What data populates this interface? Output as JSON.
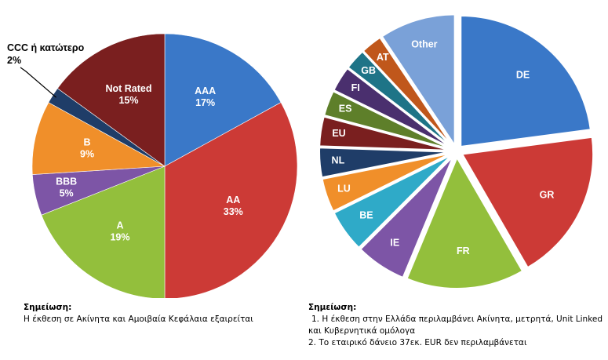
{
  "chart_data": [
    {
      "type": "pie",
      "title": "",
      "unit": "%",
      "slices": [
        {
          "label": "AAA",
          "value": 17,
          "color": "#3A78C8"
        },
        {
          "label": "AA",
          "value": 33,
          "color": "#CC3A36"
        },
        {
          "label": "A",
          "value": 19,
          "color": "#93BF3C"
        },
        {
          "label": "BBB",
          "value": 5,
          "color": "#7D55A6"
        },
        {
          "label": "B",
          "value": 9,
          "color": "#F08F2A"
        },
        {
          "label": "CCC ή κατώτερο",
          "value": 2,
          "color": "#1F3D68"
        },
        {
          "label": "Not Rated",
          "value": 15,
          "color": "#7A1F1F"
        }
      ]
    },
    {
      "type": "pie",
      "title": "",
      "exploded": true,
      "slices": [
        {
          "label": "DE",
          "value": 22,
          "color": "#3A78C8"
        },
        {
          "label": "GR",
          "value": 18,
          "color": "#CC3A36"
        },
        {
          "label": "FR",
          "value": 14,
          "color": "#93BF3C"
        },
        {
          "label": "IE",
          "value": 6,
          "color": "#7D55A6"
        },
        {
          "label": "BE",
          "value": 5,
          "color": "#2FAAC8"
        },
        {
          "label": "LU",
          "value": 4,
          "color": "#F08F2A"
        },
        {
          "label": "NL",
          "value": 3.5,
          "color": "#1F3D68"
        },
        {
          "label": "EU",
          "value": 3.5,
          "color": "#7A1F1F"
        },
        {
          "label": "ES",
          "value": 3,
          "color": "#5E7F2A"
        },
        {
          "label": "FI",
          "value": 3,
          "color": "#4A2F6E"
        },
        {
          "label": "GB",
          "value": 2.5,
          "color": "#1E7487"
        },
        {
          "label": "AT",
          "value": 2.5,
          "color": "#C0571B"
        },
        {
          "label": "Other",
          "value": 9,
          "color": "#7AA1D8"
        }
      ]
    }
  ],
  "notes": {
    "left": {
      "heading": "Σημείωση:",
      "lines": [
        "Η έκθεση σε Ακίνητα και Αμοιβαία Κεφάλαια εξαιρείται"
      ]
    },
    "right": {
      "heading": "Σημείωση:",
      "lines": [
        "1. Η έκθεση στην Ελλάδα περιλαμβάνει Ακίνητα, μετρητά, Unit Linked",
        "και Κυβερνητικά ομόλογα",
        "2. Το εταιρικό δάνειο 37εκ. EUR δεν περιλαμβάνεται"
      ]
    }
  }
}
